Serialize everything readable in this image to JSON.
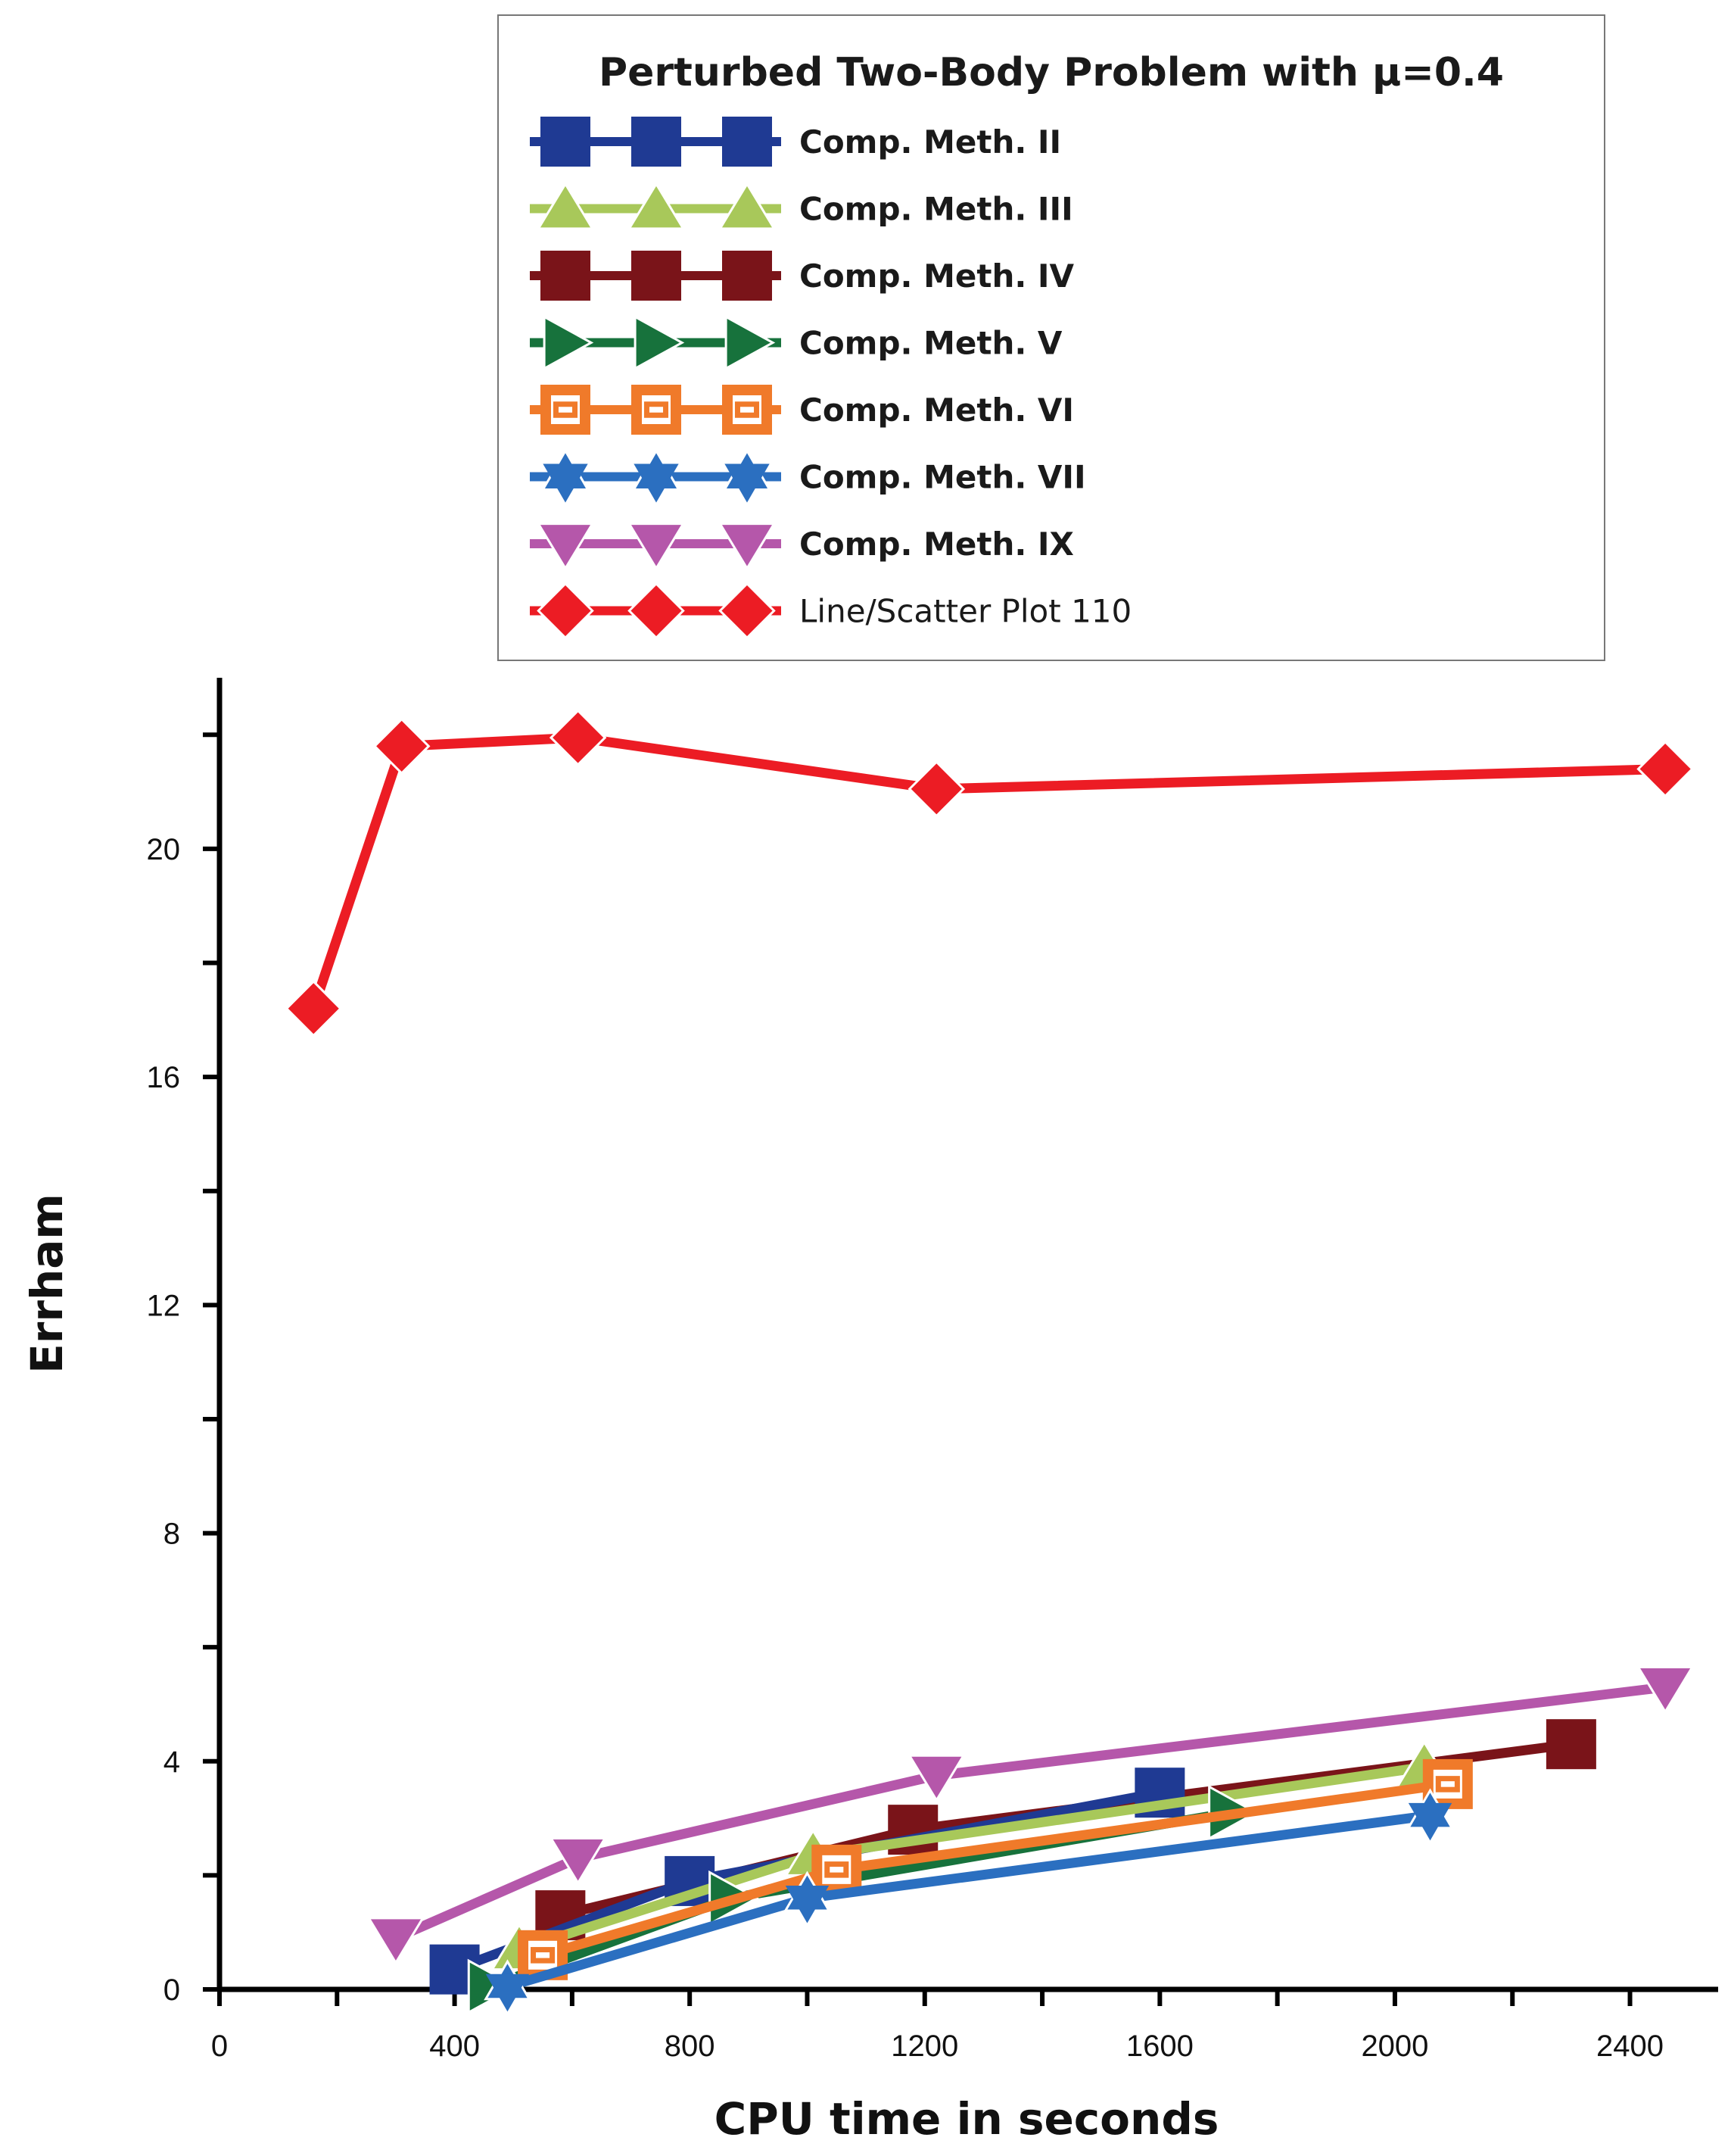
{
  "chart_data": {
    "type": "line",
    "title": "Perturbed Two-Body Problem with μ=0.4",
    "xlabel": "CPU time in seconds",
    "ylabel": "Errham",
    "xlim": [
      0,
      2550
    ],
    "ylim": [
      0,
      23
    ],
    "xticks": [
      0,
      400,
      800,
      1200,
      1600,
      2000,
      2400
    ],
    "yticks": [
      0,
      4,
      8,
      12,
      16,
      20
    ],
    "xtick_labels": [
      "0",
      "400",
      "800",
      "1200",
      "1600",
      "2000",
      "2400"
    ],
    "ytick_labels": [
      "0",
      "4",
      "8",
      "12",
      "16",
      "20"
    ],
    "legend_position": "top-right",
    "series": [
      {
        "name": "Comp. Meth. II",
        "color": "#1f3a93",
        "marker": "square",
        "x": [
          400,
          800,
          1600
        ],
        "y": [
          0.35,
          1.9,
          3.45
        ]
      },
      {
        "name": "Comp. Meth. III",
        "color": "#a8c85a",
        "marker": "triangle-up",
        "x": [
          510,
          1010,
          2050
        ],
        "y": [
          0.7,
          2.35,
          3.9
        ]
      },
      {
        "name": "Comp. Meth. IV",
        "color": "#7a1419",
        "marker": "square",
        "x": [
          580,
          1180,
          2300
        ],
        "y": [
          1.3,
          2.8,
          4.3
        ]
      },
      {
        "name": "Comp. Meth. V",
        "color": "#17723c",
        "marker": "triangle-right",
        "x": [
          460,
          870,
          1720
        ],
        "y": [
          0.05,
          1.6,
          3.1
        ]
      },
      {
        "name": "Comp. Meth. VI",
        "color": "#f07a2a",
        "marker": "square-open",
        "x": [
          550,
          1050,
          2090
        ],
        "y": [
          0.6,
          2.1,
          3.6
        ]
      },
      {
        "name": "Comp. Meth. VII",
        "color": "#2b6fc0",
        "marker": "star",
        "x": [
          490,
          1000,
          2060
        ],
        "y": [
          0.05,
          1.6,
          3.05
        ]
      },
      {
        "name": "Comp. Meth. IX",
        "color": "#b557aa",
        "marker": "triangle-down",
        "x": [
          300,
          610,
          1220,
          2460
        ],
        "y": [
          0.9,
          2.3,
          3.75,
          5.3
        ]
      },
      {
        "name": "Line/Scatter Plot 110",
        "color": "#ec1c24",
        "marker": "diamond",
        "x": [
          160,
          310,
          610,
          1220,
          2460
        ],
        "y": [
          17.2,
          21.8,
          21.95,
          21.05,
          21.4
        ]
      }
    ]
  }
}
